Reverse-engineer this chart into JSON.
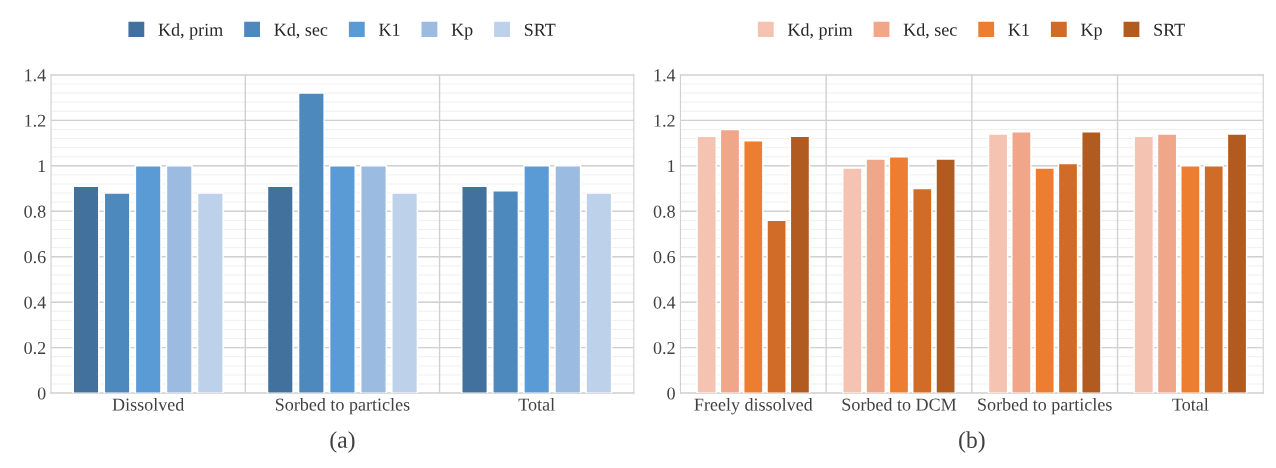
{
  "chart_data": [
    {
      "type": "bar",
      "categories": [
        "Dissolved",
        "Sorbed to particles",
        "Total"
      ],
      "series": [
        {
          "name": "Kd, prim",
          "color": "#41719c",
          "values": [
            0.91,
            0.91,
            0.91
          ]
        },
        {
          "name": "Kd, sec",
          "color": "#4e89bd",
          "values": [
            0.88,
            1.32,
            0.89
          ]
        },
        {
          "name": "K1",
          "color": "#5b9bd5",
          "values": [
            1.0,
            1.0,
            1.0
          ]
        },
        {
          "name": "Kp",
          "color": "#9bbbe0",
          "values": [
            1.0,
            1.0,
            1.0
          ]
        },
        {
          "name": "SRT",
          "color": "#bdd1ea",
          "values": [
            0.88,
            0.88,
            0.88
          ]
        }
      ],
      "ylim": [
        0,
        1.4
      ],
      "yticks": [
        0,
        0.2,
        0.4,
        0.6,
        0.8,
        1,
        1.2,
        1.4
      ],
      "grid": true,
      "legend": "top",
      "annotations": [
        "(a)"
      ]
    },
    {
      "type": "bar",
      "categories": [
        "Freely dissolved",
        "Sorbed to DCM",
        "Sorbed to particles",
        "Total"
      ],
      "series": [
        {
          "name": "Kd, prim",
          "color": "#f4c3b1",
          "values": [
            1.13,
            0.99,
            1.14,
            1.13
          ]
        },
        {
          "name": "Kd, sec",
          "color": "#f0a688",
          "values": [
            1.16,
            1.03,
            1.15,
            1.14
          ]
        },
        {
          "name": "K1",
          "color": "#ed7d31",
          "values": [
            1.11,
            1.04,
            0.99,
            1.0
          ]
        },
        {
          "name": "Kp",
          "color": "#d16b28",
          "values": [
            0.76,
            0.9,
            1.01,
            1.0
          ]
        },
        {
          "name": "SRT",
          "color": "#b15b21",
          "values": [
            1.13,
            1.03,
            1.15,
            1.14
          ]
        }
      ],
      "ylim": [
        0,
        1.4
      ],
      "yticks": [
        0,
        0.2,
        0.4,
        0.6,
        0.8,
        1,
        1.2,
        1.4
      ],
      "grid": true,
      "legend": "top",
      "annotations": [
        "(b)"
      ]
    }
  ]
}
